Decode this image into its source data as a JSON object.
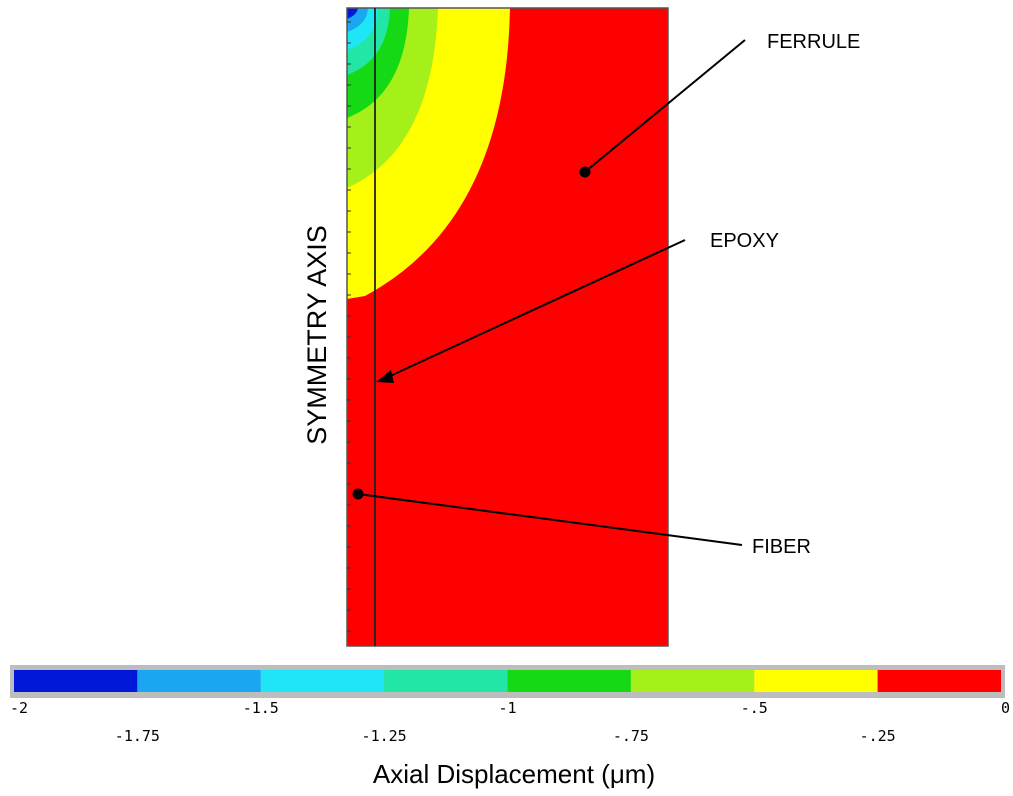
{
  "labels": {
    "ferrule": "FERRULE",
    "epoxy": "EPOXY",
    "fiber": "FIBER",
    "symmetry_axis": "SYMMETRY AXIS"
  },
  "colorbar": {
    "title": "Axial Displacement  (μm)",
    "ticks_upper": [
      "-2",
      "-1.5",
      "-1",
      "-.5",
      "0"
    ],
    "ticks_lower": [
      "-1.75",
      "-1.25",
      "-.75",
      "-.25"
    ],
    "min": -2,
    "max": 0,
    "levels": [
      {
        "from": -2.0,
        "to": -1.75,
        "color": "#0019d9"
      },
      {
        "from": -1.75,
        "to": -1.5,
        "color": "#1aa6f0"
      },
      {
        "from": -1.5,
        "to": -1.25,
        "color": "#1ee6f6"
      },
      {
        "from": -1.25,
        "to": -1.0,
        "color": "#22e6a6"
      },
      {
        "from": -1.0,
        "to": -0.75,
        "color": "#16d916"
      },
      {
        "from": -0.75,
        "to": -0.5,
        "color": "#a6f01a"
      },
      {
        "from": -0.5,
        "to": -0.25,
        "color": "#ffff00"
      },
      {
        "from": -0.25,
        "to": 0.0,
        "color": "#ff0000"
      }
    ]
  }
}
